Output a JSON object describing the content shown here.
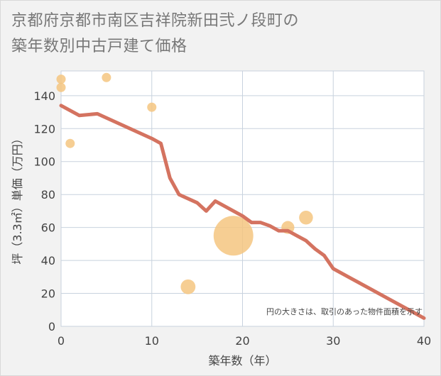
{
  "chart_data": {
    "type": "scatter",
    "title_lines": [
      "京都府京都市南区吉祥院新田弐ノ段町の",
      "築年数別中古戸建て価格"
    ],
    "xlabel": "築年数（年）",
    "ylabel": "坪（3.3㎡）単価（万円）",
    "xlim": [
      0,
      40
    ],
    "ylim": [
      0,
      155
    ],
    "x_ticks": [
      0,
      10,
      20,
      30,
      40
    ],
    "y_ticks": [
      0,
      20,
      40,
      60,
      80,
      100,
      120,
      140
    ],
    "note": "円の大きさは、取引のあった物件面積を示す",
    "colors": {
      "trend_line": "#d47360",
      "bubble": "#f5c580",
      "plot_bg": "#ffffff",
      "grid": "#c8d2de"
    },
    "scatter_points": [
      {
        "x": 0,
        "y": 150,
        "size": 1
      },
      {
        "x": 0,
        "y": 145,
        "size": 1
      },
      {
        "x": 1,
        "y": 111,
        "size": 1
      },
      {
        "x": 5,
        "y": 151,
        "size": 1
      },
      {
        "x": 10,
        "y": 133,
        "size": 1
      },
      {
        "x": 14,
        "y": 24,
        "size": 1.6
      },
      {
        "x": 19,
        "y": 55,
        "size": 4.3
      },
      {
        "x": 25,
        "y": 60,
        "size": 1.4
      },
      {
        "x": 27,
        "y": 66,
        "size": 1.5
      }
    ],
    "trend_line": {
      "x": [
        0,
        2,
        4,
        6,
        8,
        10,
        11,
        12,
        13,
        15,
        16,
        17,
        18,
        19,
        20,
        21,
        22,
        23,
        24,
        25,
        26,
        27,
        28,
        29,
        30,
        32,
        34,
        36,
        38,
        40
      ],
      "y": [
        134,
        128,
        129,
        124,
        119,
        114,
        111,
        90,
        80,
        75,
        70,
        76,
        73,
        70,
        67,
        63,
        63,
        61,
        58,
        58,
        55,
        52,
        47,
        43,
        35,
        29,
        23,
        17,
        11,
        5
      ]
    }
  }
}
